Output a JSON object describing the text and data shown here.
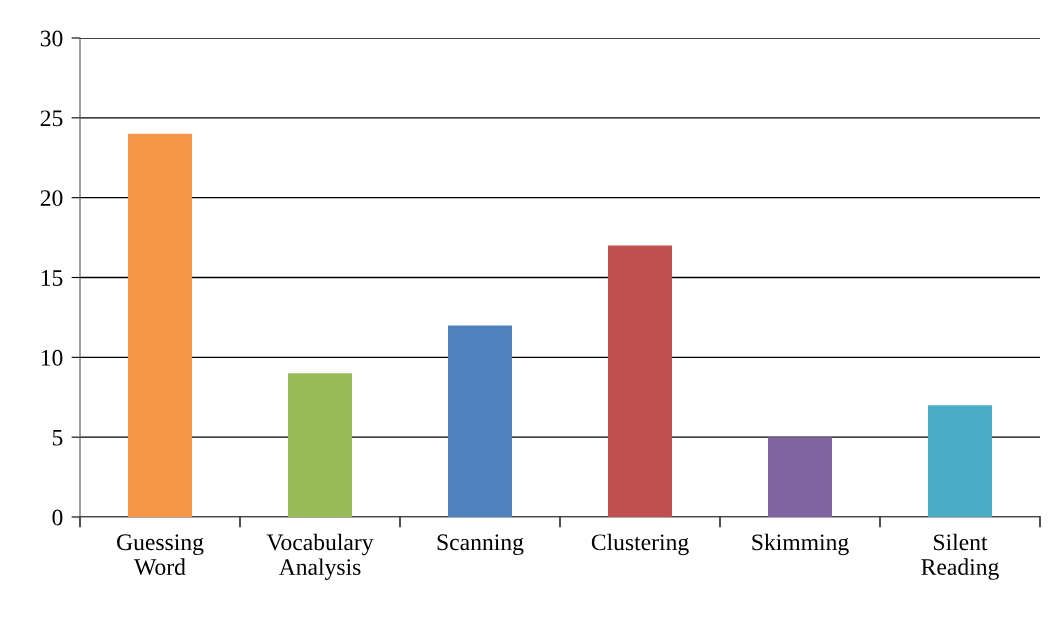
{
  "chart_data": {
    "type": "bar",
    "categories": [
      "Guessing\nWord",
      "Vocabulary\nAnalysis",
      "Scanning",
      "Clustering",
      "Skimming",
      "Silent\nReading"
    ],
    "values": [
      24,
      9,
      12,
      17,
      5,
      7
    ],
    "colors": [
      "#f79646",
      "#9bbb59",
      "#4f81bd",
      "#c0504d",
      "#8064a2",
      "#4bacc6"
    ],
    "ylim": [
      0,
      30
    ],
    "yticks": [
      0,
      5,
      10,
      15,
      20,
      25,
      30
    ],
    "grid": "y",
    "legend": false
  }
}
